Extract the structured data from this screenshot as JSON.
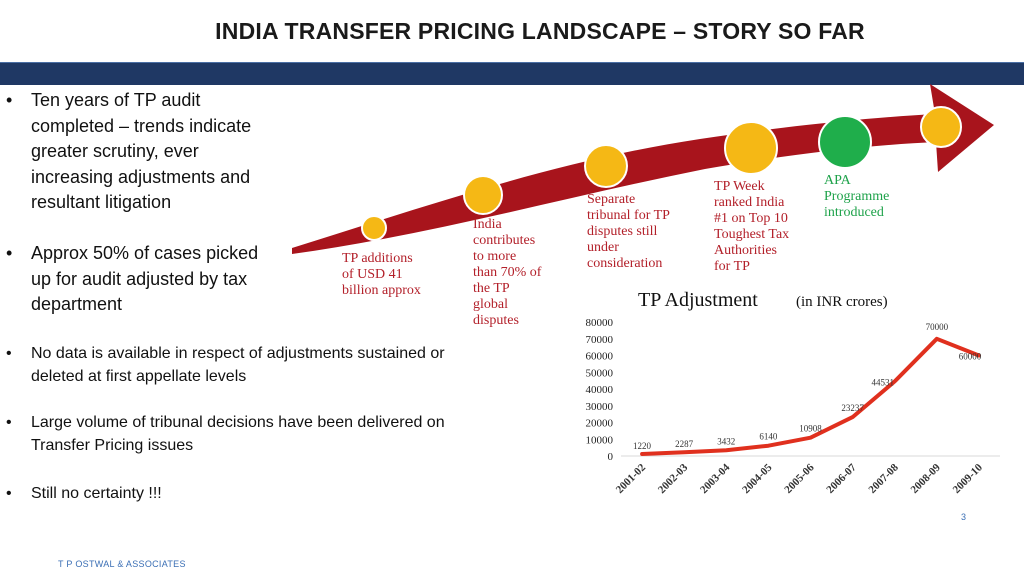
{
  "slide": {
    "title": "INDIA TRANSFER PRICING LANDSCAPE – STORY SO FAR",
    "footer": "T P OSTWAL & ASSOCIATES",
    "page_number": "3"
  },
  "bullets": [
    {
      "dot": "•",
      "text": "Ten years of TP audit\ncompleted – trends indicate\ngreater scrutiny, ever\nincreasing adjustments and\nresultant litigation"
    },
    {
      "dot": "•",
      "text": "Approx 50% of cases picked\nup for audit adjusted by tax\ndepartment"
    },
    {
      "dot": "•",
      "text": "No data is available in respect of adjustments sustained or\ndeleted at first appellate levels"
    },
    {
      "dot": "•",
      "text": "Large volume of tribunal decisions have been delivered on\nTransfer Pricing issues"
    },
    {
      "dot": "•",
      "text": "Still no certainty !!!"
    }
  ],
  "timeline": {
    "arrow_color": "#a8141c",
    "circle_color": "#f5b815",
    "highlight_circle_color": "#1fae4b",
    "notes": [
      {
        "text": "TP additions\nof USD 41\nbillion approx",
        "color": "#b3202a"
      },
      {
        "text": "India\ncontributes\nto more\nthan 70% of\nthe TP\nglobal\ndisputes",
        "color": "#b3202a"
      },
      {
        "text": "Separate\ntribunal for TP\ndisputes still\nunder\nconsideration",
        "color": "#b3202a"
      },
      {
        "text": "TP Week\nranked India\n#1 on Top 10\nToughest Tax\nAuthorities\nfor TP",
        "color": "#b3202a"
      },
      {
        "text": "APA\nProgramme\nintroduced",
        "color": "#1ea24a"
      }
    ]
  },
  "chart_data": {
    "type": "line",
    "title": "TP Adjustment",
    "subtitle": "(in INR crores)",
    "categories": [
      "2001-02",
      "2002-03",
      "2003-04",
      "2004-05",
      "2005-06",
      "2006-07",
      "2007-08",
      "2008-09",
      "2009-10"
    ],
    "series": [
      {
        "values": [
          1220,
          2287,
          3432,
          6140,
          10908,
          23237,
          44531,
          70000,
          60000
        ]
      }
    ],
    "data_labels": [
      "1220",
      "2287",
      "3432",
      "6140",
      "10908",
      "23237",
      "44531",
      "70000",
      "60000"
    ],
    "y_ticks": [
      "0",
      "10000",
      "20000",
      "30000",
      "40000",
      "50000",
      "60000",
      "70000",
      "80000"
    ],
    "ylim": [
      0,
      80000
    ],
    "line_color": "#e0301e",
    "grid": false
  }
}
